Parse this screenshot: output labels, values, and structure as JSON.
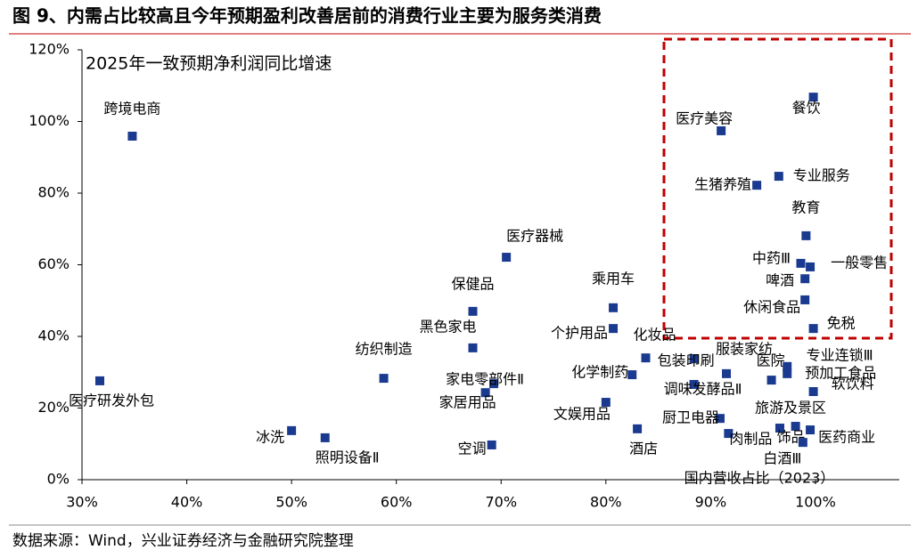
{
  "chart_data": {
    "type": "scatter",
    "title": "图 9、内需占比较高且今年预期盈利改善居前的消费行业主要为服务类消费",
    "y_label": "2025年一致预期净利润同比增速",
    "x_label": "国内营收占比（2023）",
    "source": "数据来源：Wind，兴业证券经济与金融研究院整理",
    "color": "#1a3a8f",
    "xlim": [
      30,
      108
    ],
    "ylim": [
      0,
      120
    ],
    "xticks": [
      {
        "value": 30,
        "label": "30%"
      },
      {
        "value": 40,
        "label": "40%"
      },
      {
        "value": 50,
        "label": "50%"
      },
      {
        "value": 60,
        "label": "60%"
      },
      {
        "value": 70,
        "label": "70%"
      },
      {
        "value": 80,
        "label": "80%"
      },
      {
        "value": 90,
        "label": "90%"
      },
      {
        "value": 100,
        "label": "100%"
      }
    ],
    "yticks": [
      {
        "value": 0,
        "label": "0%"
      },
      {
        "value": 20,
        "label": "20%"
      },
      {
        "value": 40,
        "label": "40%"
      },
      {
        "value": 60,
        "label": "60%"
      },
      {
        "value": 80,
        "label": "80%"
      },
      {
        "value": 100,
        "label": "100%"
      },
      {
        "value": 120,
        "label": "120%"
      }
    ],
    "labels": [
      "跨境电商",
      "医疗研发外包",
      "冰洗",
      "照明设备Ⅱ",
      "纺织制造",
      "保健品",
      "黑色家电",
      "医疗器械",
      "家电零部件Ⅱ",
      "家居用品",
      "空调",
      "乘用车",
      "个护用品",
      "化妆品",
      "化学制药",
      "文娱用品",
      "酒店",
      "包装印刷",
      "调味发酵品Ⅱ",
      "厨卫电器",
      "医疗美容",
      "生猪养殖",
      "专业服务",
      "餐饮",
      "教育",
      "中药Ⅲ",
      "一般零售",
      "啤酒",
      "休闲食品",
      "免税",
      "服装家纺",
      "医院",
      "专业连锁Ⅲ",
      "预加工食品",
      "软饮料",
      "旅游及景区",
      "肉制品",
      "饰品",
      "医药商业",
      "白酒Ⅲ"
    ],
    "x": [
      34.8,
      31.7,
      50.0,
      53.2,
      58.8,
      67.3,
      67.3,
      70.5,
      69.3,
      68.5,
      69.1,
      80.7,
      80.7,
      83.8,
      82.5,
      80.0,
      83.0,
      88.4,
      88.4,
      90.9,
      91.0,
      94.4,
      96.5,
      99.8,
      99.1,
      98.6,
      99.5,
      99.0,
      99.0,
      99.8,
      91.5,
      95.8,
      97.3,
      97.3,
      99.8,
      96.6,
      91.7,
      98.1,
      99.5,
      98.8
    ],
    "y": [
      95.9,
      27.6,
      13.7,
      11.7,
      28.3,
      47.0,
      36.8,
      62.1,
      26.8,
      24.3,
      9.7,
      48.0,
      42.2,
      34.0,
      29.3,
      21.6,
      14.2,
      33.8,
      26.6,
      17.1,
      97.4,
      82.2,
      84.7,
      106.8,
      68.1,
      60.4,
      59.4,
      56.1,
      50.2,
      42.2,
      29.6,
      27.8,
      29.6,
      31.6,
      24.6,
      14.4,
      12.9,
      14.9,
      13.9,
      10.4
    ]
  }
}
